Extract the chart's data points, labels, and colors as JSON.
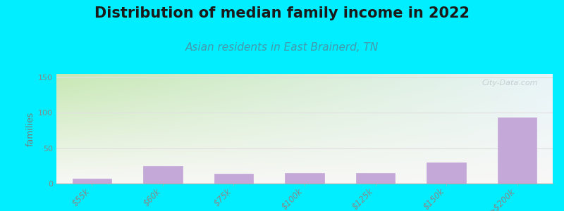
{
  "title": "Distribution of median family income in 2022",
  "subtitle": "Asian residents in East Brainerd, TN",
  "categories": [
    "$55k",
    "$60k",
    "$75k",
    "$100k",
    "$125k",
    "$150k",
    ">$200k"
  ],
  "values": [
    7,
    25,
    14,
    15,
    15,
    30,
    93
  ],
  "bar_color": "#c4a8d8",
  "bar_edge_color": "#c4a8d8",
  "ylabel": "families",
  "ylim": [
    0,
    155
  ],
  "yticks": [
    0,
    50,
    100,
    150
  ],
  "background_outer": "#00eeff",
  "background_inner_topleft": "#c8e8b0",
  "background_inner_topright": "#e8f4f8",
  "background_inner_bottom": "#f8f8f6",
  "title_fontsize": 15,
  "subtitle_fontsize": 11,
  "watermark": "City-Data.com",
  "grid_color": "#e0e0e0",
  "tick_color": "#888888",
  "ylabel_color": "#777777"
}
